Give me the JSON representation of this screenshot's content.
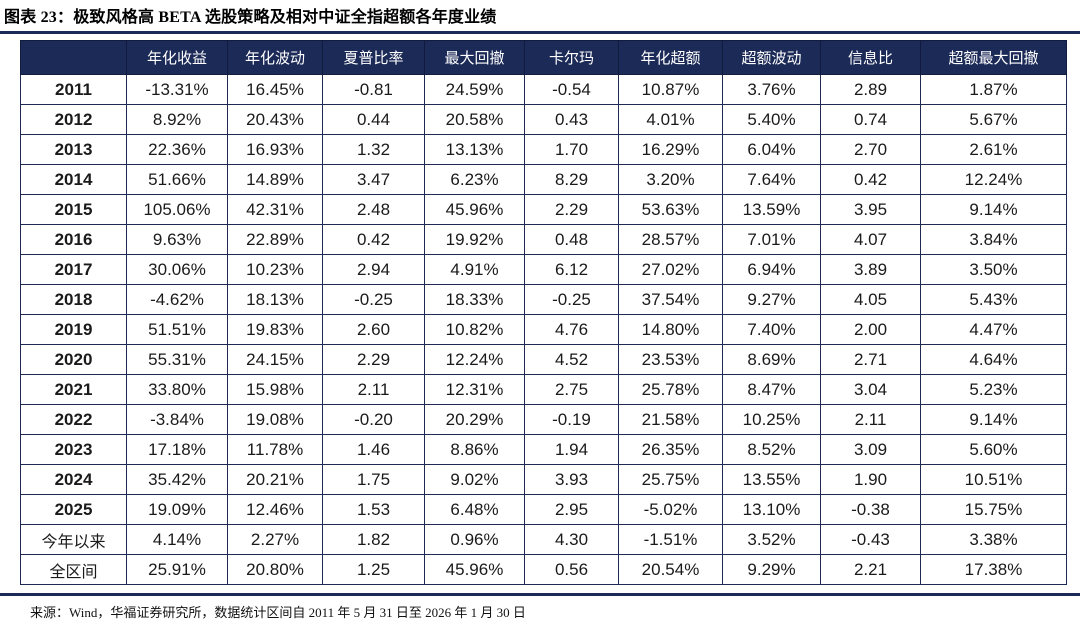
{
  "page": {
    "title": "图表 23：极致风格高 BETA 选股策略及相对中证全指超额各年度业绩",
    "source_note": "来源：Wind，华福证券研究所，数据统计区间自 2011 年 5 月 31 日至 2026 年 1 月 30 日"
  },
  "colors": {
    "header_bg": "#1c2a57",
    "header_text": "#ffffff",
    "border": "#1e2a52",
    "rule": "#1c2a57",
    "body_text": "#1a1a1a"
  },
  "chart_data": {
    "type": "table",
    "columns": [
      "",
      "年化收益",
      "年化波动",
      "夏普比率",
      "最大回撤",
      "卡尔玛",
      "年化超额",
      "超额波动",
      "信息比",
      "超额最大回撤"
    ],
    "rows": [
      [
        "2011",
        "-13.31%",
        "16.45%",
        "-0.81",
        "24.59%",
        "-0.54",
        "10.87%",
        "3.76%",
        "2.89",
        "1.87%"
      ],
      [
        "2012",
        "8.92%",
        "20.43%",
        "0.44",
        "20.58%",
        "0.43",
        "4.01%",
        "5.40%",
        "0.74",
        "5.67%"
      ],
      [
        "2013",
        "22.36%",
        "16.93%",
        "1.32",
        "13.13%",
        "1.70",
        "16.29%",
        "6.04%",
        "2.70",
        "2.61%"
      ],
      [
        "2014",
        "51.66%",
        "14.89%",
        "3.47",
        "6.23%",
        "8.29",
        "3.20%",
        "7.64%",
        "0.42",
        "12.24%"
      ],
      [
        "2015",
        "105.06%",
        "42.31%",
        "2.48",
        "45.96%",
        "2.29",
        "53.63%",
        "13.59%",
        "3.95",
        "9.14%"
      ],
      [
        "2016",
        "9.63%",
        "22.89%",
        "0.42",
        "19.92%",
        "0.48",
        "28.57%",
        "7.01%",
        "4.07",
        "3.84%"
      ],
      [
        "2017",
        "30.06%",
        "10.23%",
        "2.94",
        "4.91%",
        "6.12",
        "27.02%",
        "6.94%",
        "3.89",
        "3.50%"
      ],
      [
        "2018",
        "-4.62%",
        "18.13%",
        "-0.25",
        "18.33%",
        "-0.25",
        "37.54%",
        "9.27%",
        "4.05",
        "5.43%"
      ],
      [
        "2019",
        "51.51%",
        "19.83%",
        "2.60",
        "10.82%",
        "4.76",
        "14.80%",
        "7.40%",
        "2.00",
        "4.47%"
      ],
      [
        "2020",
        "55.31%",
        "24.15%",
        "2.29",
        "12.24%",
        "4.52",
        "23.53%",
        "8.69%",
        "2.71",
        "4.64%"
      ],
      [
        "2021",
        "33.80%",
        "15.98%",
        "2.11",
        "12.31%",
        "2.75",
        "25.78%",
        "8.47%",
        "3.04",
        "5.23%"
      ],
      [
        "2022",
        "-3.84%",
        "19.08%",
        "-0.20",
        "20.29%",
        "-0.19",
        "21.58%",
        "10.25%",
        "2.11",
        "9.14%"
      ],
      [
        "2023",
        "17.18%",
        "11.78%",
        "1.46",
        "8.86%",
        "1.94",
        "26.35%",
        "8.52%",
        "3.09",
        "5.60%"
      ],
      [
        "2024",
        "35.42%",
        "20.21%",
        "1.75",
        "9.02%",
        "3.93",
        "25.75%",
        "13.55%",
        "1.90",
        "10.51%"
      ],
      [
        "2025",
        "19.09%",
        "12.46%",
        "1.53",
        "6.48%",
        "2.95",
        "-5.02%",
        "13.10%",
        "-0.38",
        "15.75%"
      ],
      [
        "今年以来",
        "4.14%",
        "2.27%",
        "1.82",
        "0.96%",
        "4.30",
        "-1.51%",
        "3.52%",
        "-0.43",
        "3.38%"
      ],
      [
        "全区间",
        "25.91%",
        "20.80%",
        "1.25",
        "45.96%",
        "0.56",
        "20.54%",
        "9.29%",
        "2.21",
        "17.38%"
      ]
    ]
  }
}
